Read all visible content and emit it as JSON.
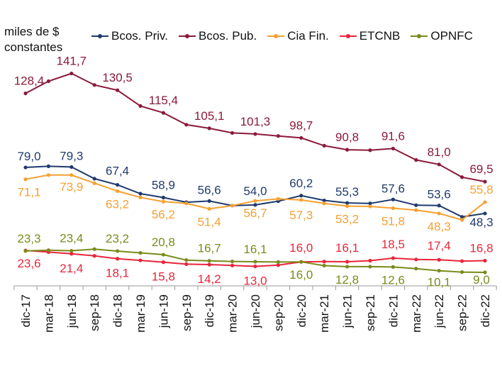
{
  "chart_data": {
    "type": "line",
    "ylabel": "miles de $ constantes",
    "ylabel_lines": [
      "miles de $",
      "constantes"
    ],
    "ylim": [
      0,
      150
    ],
    "categories": [
      "dic-17",
      "mar-18",
      "jun-18",
      "sep-18",
      "dic-18",
      "mar-19",
      "jun-19",
      "sep-19",
      "dic-19",
      "mar-20",
      "jun-20",
      "sep-20",
      "dic-20",
      "mar-21",
      "jun-21",
      "sep-21",
      "dic-21",
      "mar-22",
      "jun-22",
      "sep-22",
      "dic-22"
    ],
    "series": [
      {
        "name": "Bcos. Priv.",
        "color": "#1f3a6e",
        "values": [
          79.0,
          79.8,
          79.3,
          71.5,
          67.4,
          61.5,
          58.9,
          55.8,
          56.6,
          53.5,
          54.0,
          56.5,
          60.2,
          57.0,
          55.3,
          55.0,
          57.6,
          53.8,
          53.6,
          46.0,
          48.3
        ]
      },
      {
        "name": "Bcos. Pub.",
        "color": "#8b1a3a",
        "values": [
          128.4,
          136.5,
          141.7,
          134.0,
          130.5,
          120.0,
          115.4,
          107.5,
          105.1,
          102.0,
          101.3,
          100.0,
          98.7,
          93.5,
          90.8,
          90.5,
          91.6,
          84.0,
          81.0,
          72.5,
          69.5
        ]
      },
      {
        "name": "Cia Fin.",
        "color": "#f5a031",
        "values": [
          71.1,
          73.9,
          73.9,
          68.5,
          63.2,
          59.0,
          56.2,
          55.0,
          51.4,
          53.5,
          56.7,
          58.0,
          57.3,
          55.0,
          53.2,
          53.0,
          51.8,
          50.5,
          48.3,
          44.0,
          55.8
        ]
      },
      {
        "name": "ETCNB",
        "color": "#e8253a",
        "values": [
          23.6,
          22.5,
          21.4,
          20.0,
          18.1,
          17.0,
          15.8,
          14.5,
          14.2,
          13.6,
          13.0,
          13.8,
          16.0,
          16.2,
          16.1,
          16.8,
          18.5,
          17.6,
          17.4,
          16.5,
          16.8
        ]
      },
      {
        "name": "OPNFC",
        "color": "#7a8a1a",
        "values": [
          23.3,
          23.8,
          23.4,
          24.5,
          23.2,
          22.0,
          20.8,
          17.2,
          16.7,
          16.3,
          16.1,
          15.9,
          16.0,
          13.5,
          12.8,
          12.8,
          12.6,
          11.5,
          10.1,
          9.2,
          9.0
        ]
      }
    ],
    "data_labels": [
      {
        "series": 0,
        "labels": [
          {
            "i": 0,
            "text": "79,0"
          },
          {
            "i": 2,
            "text": "79,3"
          },
          {
            "i": 4,
            "text": "67,4"
          },
          {
            "i": 6,
            "text": "58,9"
          },
          {
            "i": 8,
            "text": "56,6"
          },
          {
            "i": 10,
            "text": "54,0"
          },
          {
            "i": 12,
            "text": "60,2"
          },
          {
            "i": 14,
            "text": "55,3"
          },
          {
            "i": 16,
            "text": "57,6"
          },
          {
            "i": 18,
            "text": "53,6"
          },
          {
            "i": 20,
            "text": "48,3"
          }
        ]
      },
      {
        "series": 1,
        "labels": [
          {
            "i": 0,
            "text": "128,4"
          },
          {
            "i": 2,
            "text": "141,7"
          },
          {
            "i": 4,
            "text": "130,5"
          },
          {
            "i": 6,
            "text": "115,4"
          },
          {
            "i": 8,
            "text": "105,1"
          },
          {
            "i": 10,
            "text": "101,3"
          },
          {
            "i": 12,
            "text": "98,7"
          },
          {
            "i": 14,
            "text": "90,8"
          },
          {
            "i": 16,
            "text": "91,6"
          },
          {
            "i": 18,
            "text": "81,0"
          },
          {
            "i": 20,
            "text": "69,5"
          }
        ]
      },
      {
        "series": 2,
        "labels": [
          {
            "i": 0,
            "text": "71,1"
          },
          {
            "i": 2,
            "text": "73,9"
          },
          {
            "i": 4,
            "text": "63,2"
          },
          {
            "i": 6,
            "text": "56,2"
          },
          {
            "i": 8,
            "text": "51,4"
          },
          {
            "i": 10,
            "text": "56,7"
          },
          {
            "i": 12,
            "text": "57,3"
          },
          {
            "i": 14,
            "text": "53,2"
          },
          {
            "i": 16,
            "text": "51,8"
          },
          {
            "i": 18,
            "text": "48,3"
          },
          {
            "i": 20,
            "text": "55,8"
          }
        ]
      },
      {
        "series": 3,
        "labels": [
          {
            "i": 0,
            "text": "23,6"
          },
          {
            "i": 2,
            "text": "21,4"
          },
          {
            "i": 4,
            "text": "18,1"
          },
          {
            "i": 6,
            "text": "15,8"
          },
          {
            "i": 8,
            "text": "14,2"
          },
          {
            "i": 10,
            "text": "13,0"
          },
          {
            "i": 12,
            "text": "16,0"
          },
          {
            "i": 14,
            "text": "16,1"
          },
          {
            "i": 16,
            "text": "18,5"
          },
          {
            "i": 18,
            "text": "17,4"
          },
          {
            "i": 20,
            "text": "16,8"
          }
        ]
      },
      {
        "series": 4,
        "labels": [
          {
            "i": 0,
            "text": "23,3"
          },
          {
            "i": 2,
            "text": "23,4"
          },
          {
            "i": 4,
            "text": "23,2"
          },
          {
            "i": 6,
            "text": "20,8"
          },
          {
            "i": 8,
            "text": "16,7"
          },
          {
            "i": 10,
            "text": "16,1"
          },
          {
            "i": 12,
            "text": "16,0"
          },
          {
            "i": 14,
            "text": "12,8"
          },
          {
            "i": 16,
            "text": "12,6"
          },
          {
            "i": 18,
            "text": "10,1"
          },
          {
            "i": 20,
            "text": "9,0"
          }
        ]
      }
    ],
    "grid": false,
    "legend": "top"
  }
}
